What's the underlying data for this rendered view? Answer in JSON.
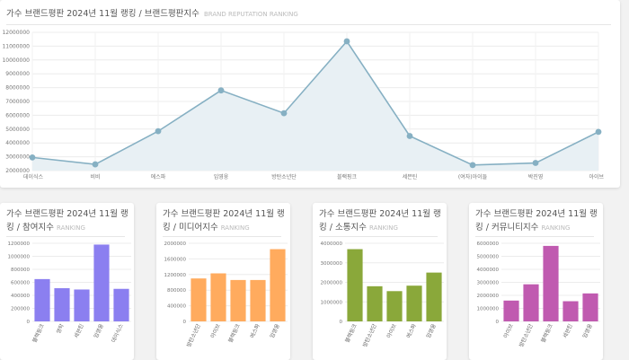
{
  "chart_data": [
    {
      "type": "line",
      "title": "가수 브랜드평판 2024년 11월 랭킹 / 브랜드평판지수",
      "subtitle": "BRAND REPUTATION RANKING",
      "categories": [
        "데이식스",
        "비비",
        "에스파",
        "임영웅",
        "방탄소년단",
        "블랙핑크",
        "세븐틴",
        "(여자)아이들",
        "박진영",
        "아이브"
      ],
      "values": [
        2950000,
        2450000,
        4850000,
        7800000,
        6150000,
        11350000,
        4500000,
        2400000,
        2550000,
        4800000
      ],
      "ylim": [
        2000000,
        12000000
      ],
      "yticks": [
        "2000000",
        "3000000",
        "4000000",
        "5000000",
        "6000000",
        "7000000",
        "8000000",
        "9000000",
        "10000000",
        "11000000",
        "12000000"
      ],
      "color": "#86b0c3",
      "fill": "#e8f0f4"
    },
    {
      "type": "bar",
      "title": "가수 브랜드평판 2024년 11월 랭킹 / 참여지수",
      "subtitle": "RANKING",
      "categories": [
        "블랙핑크",
        "영탁",
        "세븐틴",
        "임영웅",
        "데이식스"
      ],
      "values": [
        650000,
        510000,
        490000,
        1180000,
        500000
      ],
      "ylim": [
        0,
        1200000
      ],
      "yticks": [
        "0",
        "200000",
        "400000",
        "600000",
        "800000",
        "1000000",
        "1200000"
      ],
      "color": "#8b7ff0"
    },
    {
      "type": "bar",
      "title": "가수 브랜드평판 2024년 11월 랭킹 / 미디어지수",
      "subtitle": "RANKING",
      "categories": [
        "방탄소년단",
        "아이브",
        "블랙핑크",
        "에스파",
        "임영웅"
      ],
      "values": [
        1100000,
        1230000,
        1060000,
        1060000,
        1850000
      ],
      "ylim": [
        0,
        2000000
      ],
      "yticks": [
        "0",
        "400000",
        "800000",
        "1200000",
        "1600000",
        "2000000"
      ],
      "color": "#ffab5e"
    },
    {
      "type": "bar",
      "title": "가수 브랜드평판 2024년 11월 랭킹 / 소통지수",
      "subtitle": "RANKING",
      "categories": [
        "블랙핑크",
        "방탄소년단",
        "아이브",
        "에스파",
        "임영웅"
      ],
      "values": [
        3700000,
        1800000,
        1550000,
        1830000,
        2500000
      ],
      "ylim": [
        0,
        4000000
      ],
      "yticks": [
        "0",
        "1000000",
        "2000000",
        "3000000",
        "4000000"
      ],
      "color": "#8aa83a"
    },
    {
      "type": "bar",
      "title": "가수 브랜드평판 2024년 11월 랭킹 / 커뮤니티지수",
      "subtitle": "RANKING",
      "categories": [
        "아이브",
        "방탄소년단",
        "블랙핑크",
        "세븐틴",
        "임영웅"
      ],
      "values": [
        1600000,
        2850000,
        5800000,
        1550000,
        2150000
      ],
      "ylim": [
        0,
        6000000
      ],
      "yticks": [
        "0",
        "1000000",
        "2000000",
        "3000000",
        "4000000",
        "5000000",
        "6000000"
      ],
      "color": "#c05ab0"
    }
  ]
}
